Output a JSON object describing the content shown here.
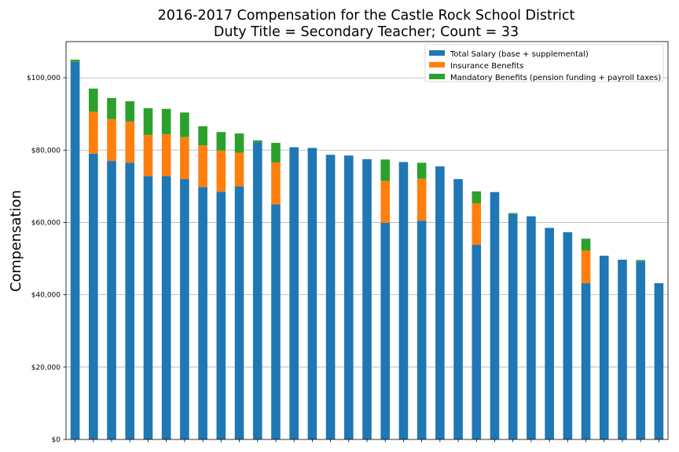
{
  "chart_data": {
    "type": "bar",
    "stacked": true,
    "title": "2016-2017 Compensation for the Castle Rock School District",
    "subtitle": "Duty Title = Secondary Teacher; Count = 33",
    "xlabel": "",
    "ylabel": "Compensation",
    "ylim": [
      0,
      110000
    ],
    "yticks": [
      0,
      20000,
      40000,
      60000,
      80000,
      100000
    ],
    "ytick_labels": [
      "$0",
      "$20,000",
      "$40,000",
      "$60,000",
      "$80,000",
      "$100,000"
    ],
    "grid": "horizontal",
    "legend_position": "top-right",
    "series": [
      {
        "name": "Total Salary (base + supplemental)",
        "color": "#1f77b4",
        "values": [
          104400,
          79000,
          77000,
          76500,
          72800,
          72800,
          72000,
          69800,
          68500,
          70000,
          82200,
          65000,
          80800,
          80600,
          78700,
          78500,
          77500,
          59900,
          76700,
          60500,
          75500,
          72000,
          53800,
          68400,
          62300,
          61700,
          58500,
          57300,
          43200,
          50800,
          49700,
          49200,
          43200
        ]
      },
      {
        "name": "Insurance Benefits",
        "color": "#ff7f0e",
        "values": [
          0,
          11600,
          11600,
          11400,
          11400,
          11600,
          11600,
          11500,
          11400,
          9300,
          0,
          11600,
          0,
          0,
          0,
          0,
          0,
          11600,
          0,
          11600,
          0,
          0,
          11500,
          0,
          0,
          0,
          0,
          0,
          9000,
          0,
          0,
          0,
          0
        ]
      },
      {
        "name": "Mandatory Benefits (pension funding + payroll taxes)",
        "color": "#2ca02c",
        "values": [
          600,
          6400,
          5800,
          5600,
          7400,
          7000,
          6800,
          5300,
          5100,
          5300,
          500,
          5400,
          0,
          0,
          0,
          0,
          0,
          5900,
          0,
          4400,
          0,
          0,
          3300,
          0,
          300,
          0,
          0,
          0,
          3300,
          0,
          0,
          400,
          0
        ]
      }
    ]
  }
}
